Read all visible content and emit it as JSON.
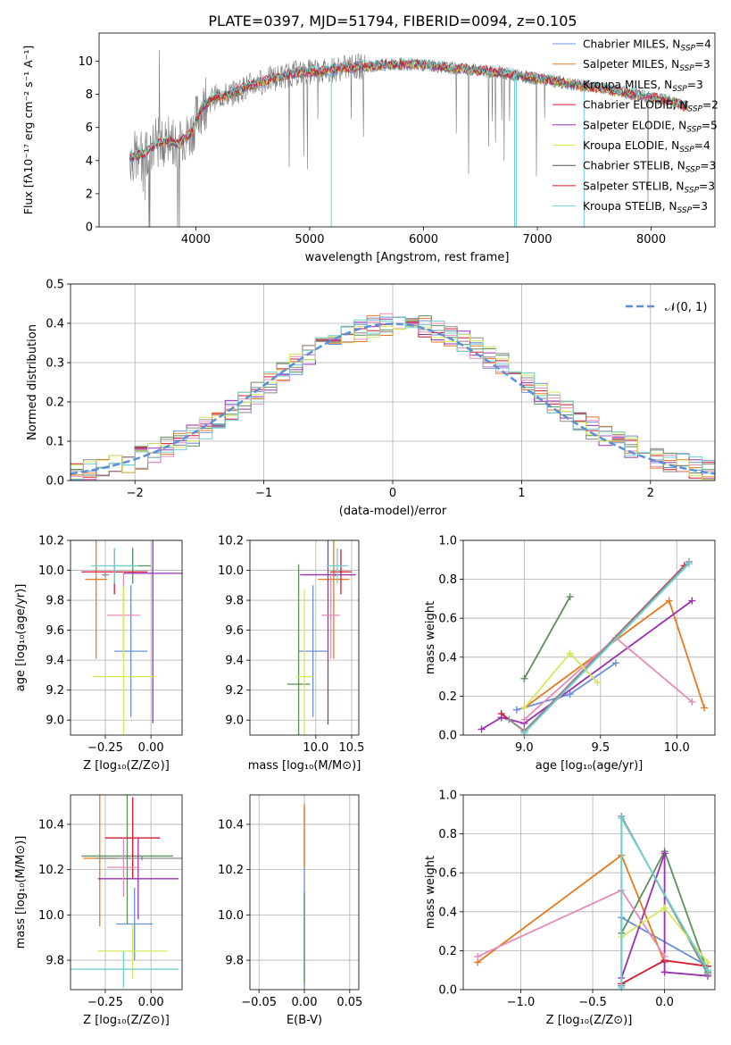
{
  "figure_title": "PLATE=0397, MJD=51794, FIBERID=0094, z=0.105",
  "colors": [
    "#6a8fd8",
    "#e87a1e",
    "#5b8f5b",
    "#d6162a",
    "#9b30b0",
    "#e58cb8",
    "#8a8a8a",
    "#d6e85a",
    "#6fd0d0"
  ],
  "chart_data": [
    {
      "id": "spectrum",
      "type": "line",
      "title": "PLATE=0397, MJD=51794, FIBERID=0094, z=0.105",
      "xlabel": "wavelength [Angstrom, rest frame]",
      "ylabel": "Flux [fλ10⁻¹⁷ erg cm⁻² s⁻¹ A⁻¹]",
      "xlim": [
        3150,
        8560
      ],
      "ylim": [
        0,
        11.7
      ],
      "xticks": [
        4000,
        5000,
        6000,
        7000,
        8000
      ],
      "yticks": [
        0,
        2,
        4,
        6,
        8,
        10
      ],
      "grid": false,
      "legend_position": "top-right",
      "continuum_x": [
        3450,
        3550,
        3650,
        3750,
        3850,
        3950,
        4050,
        4150,
        4300,
        4500,
        4700,
        4900,
        5100,
        5300,
        5500,
        5700,
        5900,
        6100,
        6300,
        6500,
        6700,
        6900,
        7100,
        7300,
        7500,
        7700,
        7900,
        8100,
        8300
      ],
      "continuum_y": [
        4.2,
        4.5,
        5.0,
        5.2,
        5.0,
        5.6,
        7.2,
        7.8,
        8.0,
        8.6,
        9.0,
        9.3,
        9.4,
        9.6,
        9.7,
        9.8,
        9.85,
        9.7,
        9.55,
        9.45,
        9.3,
        9.05,
        8.85,
        8.6,
        8.45,
        8.2,
        7.95,
        7.7,
        7.3
      ],
      "series": [
        {
          "name": "Chabrier MILES, N$_{SSP}$=4",
          "color": "#6a8fd8"
        },
        {
          "name": "Salpeter MILES, N$_{SSP}$=3",
          "color": "#e87a1e"
        },
        {
          "name": "Kroupa MILES, N$_{SSP}$=3",
          "color": "#5b8f5b"
        },
        {
          "name": "Chabrier ELODIE, N$_{SSP}$=2",
          "color": "#d6162a"
        },
        {
          "name": "Salpeter ELODIE, N$_{SSP}$=5",
          "color": "#9b30b0"
        },
        {
          "name": "Kroupa ELODIE, N$_{SSP}$=4",
          "color": "#d6e85a"
        },
        {
          "name": "Chabrier STELIB, N$_{SSP}$=3",
          "color": "#555555"
        },
        {
          "name": "Salpeter STELIB, N$_{SSP}$=3",
          "color": "#d6162a"
        },
        {
          "name": "Kroupa STELIB, N$_{SSP}$=3",
          "color": "#6fd0d0"
        }
      ]
    },
    {
      "id": "residuals",
      "type": "line",
      "xlabel": "(data-model)/error",
      "ylabel": "Normed distribution",
      "xlim": [
        -2.5,
        2.5
      ],
      "ylim": [
        0,
        0.5
      ],
      "xticks": [
        -2,
        -1,
        0,
        1,
        2
      ],
      "yticks": [
        0.0,
        0.1,
        0.2,
        0.3,
        0.4,
        0.5
      ],
      "grid": true,
      "legend_position": "top-right",
      "legend": "𝒩(0, 1)",
      "gaussian": {
        "mean": 0,
        "sigma": 1
      }
    },
    {
      "id": "z-age",
      "type": "scatter",
      "xlabel": "Z [log₁₀(Z/Z⊙)]",
      "ylabel": "age  [log₁₀(age/yr)]",
      "xlim": [
        -0.44,
        0.17
      ],
      "ylim": [
        8.9,
        10.2
      ],
      "xticks": [
        -0.25,
        0.0
      ],
      "yticks": [
        9.0,
        9.2,
        9.4,
        9.6,
        9.8,
        10.0,
        10.2
      ],
      "grid": true,
      "points": [
        {
          "x": -0.11,
          "y": 9.46,
          "xerr": 0.09,
          "yerr": 0.44
        },
        {
          "x": -0.3,
          "y": 9.94,
          "xerr": 0.06,
          "yerr": 0.53
        },
        {
          "x": -0.1,
          "y": 10.03,
          "xerr": 0.1,
          "yerr": 0.12
        },
        {
          "x": -0.2,
          "y": 9.99,
          "xerr": 0.18,
          "yerr": 0.15
        },
        {
          "x": 0.01,
          "y": 9.98,
          "xerr": 0.16,
          "yerr": 1.0
        },
        {
          "x": -0.15,
          "y": 9.7,
          "xerr": 0.09,
          "yerr": 0.29
        },
        {
          "x": -0.25,
          "y": 9.97,
          "xerr": 0.02,
          "yerr": 0.02
        },
        {
          "x": -0.15,
          "y": 9.29,
          "xerr": 0.17,
          "yerr": 0.6
        },
        {
          "x": -0.2,
          "y": 10.03,
          "xerr": 0.13,
          "yerr": 0.12
        }
      ]
    },
    {
      "id": "mass-age",
      "type": "scatter",
      "xlabel": "mass [log₁₀(M/M⊙)]",
      "ylabel": "",
      "xlim": [
        9.08,
        10.6
      ],
      "ylim": [
        8.9,
        10.2
      ],
      "xticks": [
        10.0,
        10.5
      ],
      "yticks": [
        9.0,
        9.2,
        9.4,
        9.6,
        9.8,
        10.0,
        10.2
      ],
      "grid": true,
      "points": [
        {
          "x": 9.96,
          "y": 9.46,
          "xerr": 0.2,
          "yerr": 0.44
        },
        {
          "x": 10.25,
          "y": 9.94,
          "xerr": 0.22,
          "yerr": 0.53
        },
        {
          "x": 9.76,
          "y": 9.24,
          "xerr": 0.16,
          "yerr": 0.8
        },
        {
          "x": 10.35,
          "y": 9.99,
          "xerr": 0.15,
          "yerr": 0.15
        },
        {
          "x": 10.17,
          "y": 9.97,
          "xerr": 0.39,
          "yerr": 1.0
        },
        {
          "x": 10.21,
          "y": 9.7,
          "xerr": 0.13,
          "yerr": 0.29
        },
        {
          "x": 10.27,
          "y": 9.97,
          "xerr": 0.01,
          "yerr": 0.01
        },
        {
          "x": 9.84,
          "y": 9.29,
          "xerr": 0.12,
          "yerr": 0.58
        },
        {
          "x": 10.3,
          "y": 10.03,
          "xerr": 0.15,
          "yerr": 0.12
        }
      ]
    },
    {
      "id": "age-weight",
      "type": "line",
      "xlabel": "age  [log₁₀(age/yr)]",
      "ylabel": "mass weight",
      "xlim": [
        8.6,
        10.25
      ],
      "ylim": [
        0,
        1.0
      ],
      "xticks": [
        9.0,
        9.5,
        10.0
      ],
      "yticks": [
        0.0,
        0.2,
        0.4,
        0.6,
        0.8,
        1.0
      ],
      "grid": true,
      "series": [
        {
          "x": [
            8.95,
            9.3,
            9.6
          ],
          "y": [
            0.13,
            0.21,
            0.37
          ]
        },
        {
          "x": [
            9.0,
            9.95,
            10.18
          ],
          "y": [
            0.14,
            0.69,
            0.14
          ]
        },
        {
          "x": [
            9.0,
            9.3
          ],
          "y": [
            0.29,
            0.71
          ]
        },
        {
          "x": [
            8.85,
            9.0,
            10.05
          ],
          "y": [
            0.11,
            0.02,
            0.87
          ]
        },
        {
          "x": [
            8.72,
            8.85,
            9.0,
            10.1
          ],
          "y": [
            0.03,
            0.09,
            0.06,
            0.69
          ]
        },
        {
          "x": [
            9.0,
            9.6,
            10.1
          ],
          "y": [
            0.08,
            0.5,
            0.17
          ]
        },
        {
          "x": [
            8.9,
            9.0,
            10.08
          ],
          "y": [
            0.08,
            0.02,
            0.89
          ]
        },
        {
          "x": [
            9.0,
            9.3,
            9.48
          ],
          "y": [
            0.14,
            0.42,
            0.27
          ]
        },
        {
          "x": [
            9.0,
            10.08
          ],
          "y": [
            0.01,
            0.88
          ]
        }
      ]
    },
    {
      "id": "z-mass",
      "type": "scatter",
      "xlabel": "Z [log₁₀(Z/Z⊙)]",
      "ylabel": "mass [log₁₀(M/M⊙)]",
      "xlim": [
        -0.44,
        0.17
      ],
      "ylim": [
        9.67,
        10.53
      ],
      "xticks": [
        -0.25,
        0.0
      ],
      "yticks": [
        9.8,
        10.0,
        10.2,
        10.4
      ],
      "grid": true,
      "points": [
        {
          "x": -0.09,
          "y": 9.96,
          "xerr": 0.1,
          "yerr": 0.16
        },
        {
          "x": -0.28,
          "y": 10.25,
          "xerr": 0.09,
          "yerr": 0.3
        },
        {
          "x": -0.13,
          "y": 10.26,
          "xerr": 0.25,
          "yerr": 0.3
        },
        {
          "x": -0.1,
          "y": 10.34,
          "xerr": 0.15,
          "yerr": 0.18
        },
        {
          "x": -0.07,
          "y": 10.16,
          "xerr": 0.22,
          "yerr": 0.18
        },
        {
          "x": -0.15,
          "y": 10.21,
          "xerr": 0.09,
          "yerr": 0.13
        },
        {
          "x": -0.05,
          "y": 10.25,
          "xerr": 0.25,
          "yerr": 0.01
        },
        {
          "x": -0.1,
          "y": 9.84,
          "xerr": 0.19,
          "yerr": 0.12
        },
        {
          "x": -0.15,
          "y": 9.76,
          "xerr": 0.3,
          "yerr": 0.08
        }
      ]
    },
    {
      "id": "ebv-mass",
      "type": "scatter",
      "xlabel": "E(B-V)",
      "ylabel": "",
      "xlim": [
        -0.06,
        0.06
      ],
      "ylim": [
        9.67,
        10.53
      ],
      "xticks": [
        -0.05,
        0.0,
        0.05
      ],
      "yticks": [
        9.8,
        10.0,
        10.2,
        10.4
      ],
      "grid": true,
      "points": [
        {
          "x": 0.0,
          "y": 10.0,
          "xerr": 0.0,
          "yerr": 0.48
        },
        {
          "x": 0.0,
          "y": 10.35,
          "xerr": 0.0,
          "yerr": 0.14
        },
        {
          "x": 0.0,
          "y": 9.9,
          "xerr": 0.0,
          "yerr": 0.2
        }
      ]
    },
    {
      "id": "z-weight",
      "type": "line",
      "xlabel": "Z [log₁₀(Z/Z⊙)]",
      "ylabel": "mass weight",
      "xlim": [
        -1.4,
        0.35
      ],
      "ylim": [
        0,
        1.0
      ],
      "xticks": [
        -1.0,
        -0.5,
        0.0
      ],
      "yticks": [
        0.0,
        0.2,
        0.4,
        0.6,
        0.8,
        1.0
      ],
      "grid": true,
      "series": [
        {
          "x": [
            -0.3,
            -0.3,
            0.3
          ],
          "y": [
            0.02,
            0.37,
            0.12
          ]
        },
        {
          "x": [
            -1.3,
            -0.3,
            0.0
          ],
          "y": [
            0.14,
            0.69,
            0.14
          ]
        },
        {
          "x": [
            -0.3,
            0.0,
            0.3
          ],
          "y": [
            0.29,
            0.71,
            0.09
          ]
        },
        {
          "x": [
            -0.3,
            0.0,
            0.3
          ],
          "y": [
            0.03,
            0.15,
            0.12
          ]
        },
        {
          "x": [
            -0.3,
            0.0,
            0.0,
            0.3
          ],
          "y": [
            0.06,
            0.7,
            0.09,
            0.07
          ]
        },
        {
          "x": [
            -1.3,
            -0.3,
            0.0
          ],
          "y": [
            0.17,
            0.51,
            0.17
          ]
        },
        {
          "x": [
            -0.3,
            -0.3,
            0.3
          ],
          "y": [
            0.02,
            0.89,
            0.08
          ]
        },
        {
          "x": [
            -0.3,
            0.0,
            0.3
          ],
          "y": [
            0.27,
            0.42,
            0.14
          ]
        },
        {
          "x": [
            -0.3,
            -0.3,
            0.3
          ],
          "y": [
            0.01,
            0.88,
            0.1
          ]
        }
      ]
    }
  ]
}
